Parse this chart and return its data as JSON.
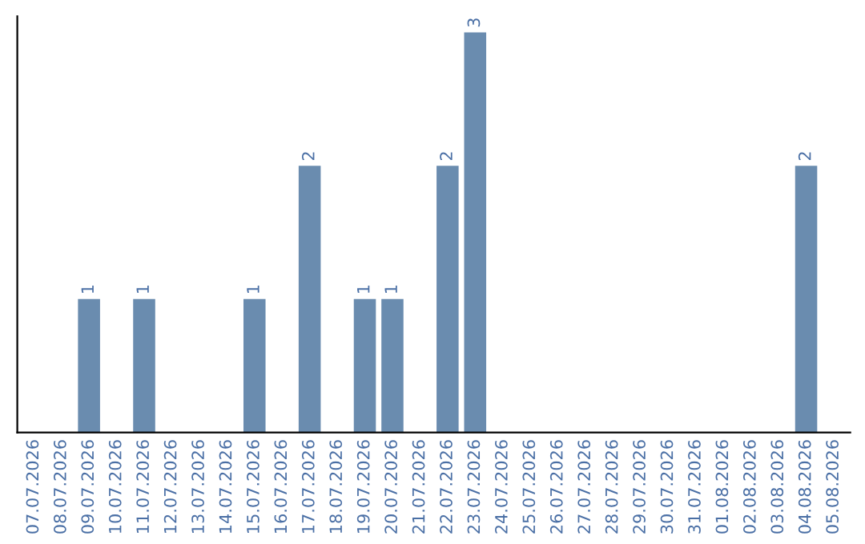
{
  "chart_data": {
    "type": "bar",
    "categories": [
      "07.07.2026",
      "08.07.2026",
      "09.07.2026",
      "10.07.2026",
      "11.07.2026",
      "12.07.2026",
      "13.07.2026",
      "14.07.2026",
      "15.07.2026",
      "16.07.2026",
      "17.07.2026",
      "18.07.2026",
      "19.07.2026",
      "20.07.2026",
      "21.07.2026",
      "22.07.2026",
      "23.07.2026",
      "24.07.2026",
      "25.07.2026",
      "26.07.2026",
      "27.07.2026",
      "28.07.2026",
      "29.07.2026",
      "30.07.2026",
      "31.07.2026",
      "01.08.2026",
      "02.08.2026",
      "03.08.2026",
      "04.08.2026",
      "05.08.2026"
    ],
    "values": [
      0,
      0,
      1,
      0,
      1,
      0,
      0,
      0,
      1,
      0,
      2,
      0,
      1,
      1,
      0,
      2,
      3,
      0,
      0,
      0,
      0,
      0,
      0,
      0,
      0,
      0,
      0,
      0,
      2,
      0
    ],
    "value_labels": [
      null,
      null,
      "1",
      null,
      "1",
      null,
      null,
      null,
      "1",
      null,
      "2",
      null,
      "1",
      "1",
      null,
      "2",
      "3",
      null,
      null,
      null,
      null,
      null,
      null,
      null,
      null,
      null,
      null,
      null,
      "2",
      null
    ],
    "color": "#6a8caf",
    "tick_labels": "x",
    "grid": false
  }
}
